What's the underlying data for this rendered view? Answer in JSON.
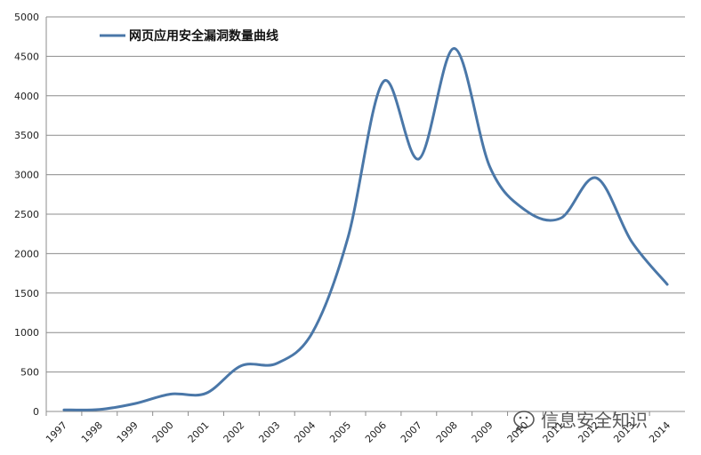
{
  "chart_data": {
    "type": "line",
    "title": "",
    "xlabel": "",
    "ylabel": "",
    "categories": [
      "1997",
      "1998",
      "1999",
      "2000",
      "2001",
      "2002",
      "2003",
      "2004",
      "2005",
      "2006",
      "2007",
      "2008",
      "2009",
      "2010",
      "2011",
      "2012",
      "2013",
      "2014"
    ],
    "series": [
      {
        "name": "网页应用安全漏洞数量曲线",
        "color": "#4a77a8",
        "values": [
          20,
          25,
          100,
          220,
          230,
          580,
          610,
          1000,
          2200,
          4180,
          3200,
          4600,
          3100,
          2550,
          2450,
          2960,
          2150,
          1610
        ]
      }
    ],
    "ylim": [
      0,
      5000
    ],
    "yticks": [
      0,
      500,
      1000,
      1500,
      2000,
      2500,
      3000,
      3500,
      4000,
      4500,
      5000
    ],
    "grid": true,
    "legend_position": "top-left",
    "smooth": true
  },
  "watermark": {
    "text": "信息安全知识",
    "icon": "wechat-icon"
  }
}
